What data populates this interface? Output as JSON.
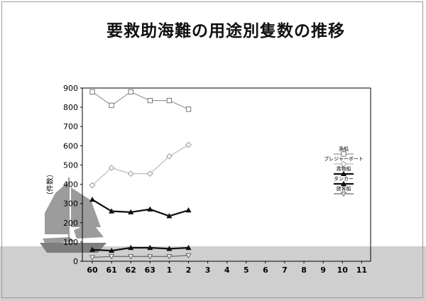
{
  "chart_data": {
    "type": "line",
    "title": "要救助海難の用途別隻数の推移",
    "xlabel": "",
    "ylabel": "（件数）",
    "categories": [
      "60",
      "61",
      "62",
      "63",
      "1",
      "2",
      "3",
      "4",
      "5",
      "6",
      "7",
      "8",
      "9",
      "10",
      "11"
    ],
    "ylim": [
      0,
      900
    ],
    "yticks": [
      0,
      100,
      200,
      300,
      400,
      500,
      600,
      700,
      800,
      900
    ],
    "grid": false,
    "legend_position": "right",
    "series": [
      {
        "name": "漁船",
        "marker": "square",
        "color": "#999999",
        "values": [
          880,
          810,
          880,
          835,
          835,
          790,
          null,
          null,
          null,
          null,
          null,
          null,
          null,
          null,
          null
        ]
      },
      {
        "name": "プレジャーボート",
        "marker": "diamond",
        "color": "#bbbbbb",
        "values": [
          395,
          485,
          455,
          455,
          545,
          605,
          null,
          null,
          null,
          null,
          null,
          null,
          null,
          null,
          null
        ]
      },
      {
        "name": "貨物船",
        "marker": "triangle",
        "color": "#111111",
        "values": [
          320,
          260,
          255,
          270,
          235,
          265,
          null,
          null,
          null,
          null,
          null,
          null,
          null,
          null,
          null
        ]
      },
      {
        "name": "タンカー",
        "marker": "triangle",
        "color": "#111111",
        "values": [
          60,
          55,
          70,
          70,
          65,
          70,
          null,
          null,
          null,
          null,
          null,
          null,
          null,
          null,
          null
        ]
      },
      {
        "name": "旅客船",
        "marker": "triangle-down",
        "color": "#666666",
        "values": [
          20,
          25,
          25,
          25,
          25,
          30,
          null,
          null,
          null,
          null,
          null,
          null,
          null,
          null,
          null
        ]
      }
    ]
  }
}
